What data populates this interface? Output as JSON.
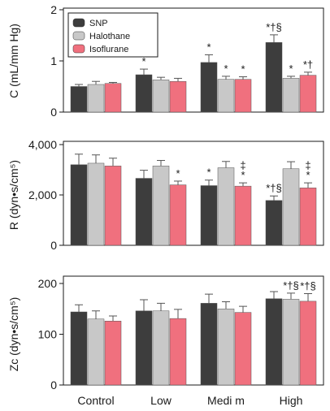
{
  "legend": {
    "position": "top-left",
    "entries": [
      {
        "name": "SNP",
        "color": "#3d3d3d"
      },
      {
        "name": "Halothane",
        "color": "#c8c8c8"
      },
      {
        "name": "Isoflurane",
        "color": "#f0707e"
      }
    ]
  },
  "chart_data": [
    {
      "type": "bar",
      "ylabel": "C (mL/mm Hg)",
      "ylim": [
        0,
        2
      ],
      "yticks": [
        "0",
        "1",
        "2"
      ],
      "yticks_values": [
        0,
        1,
        2
      ],
      "categories": [
        "Control",
        "Low",
        "Medium",
        "High"
      ],
      "series": [
        {
          "name": "SNP",
          "values": [
            0.5,
            0.73,
            0.97,
            1.36
          ],
          "errors": [
            0.04,
            0.11,
            0.15,
            0.15
          ]
        },
        {
          "name": "Halothane",
          "values": [
            0.54,
            0.63,
            0.64,
            0.66
          ],
          "errors": [
            0.06,
            0.05,
            0.06,
            0.04
          ]
        },
        {
          "name": "Isoflurane",
          "values": [
            0.56,
            0.6,
            0.64,
            0.72
          ],
          "errors": [
            0.02,
            0.06,
            0.05,
            0.06
          ]
        }
      ],
      "annotations": [
        {
          "category": 1,
          "series": 0,
          "text": "*"
        },
        {
          "category": 2,
          "series": 0,
          "text": "*"
        },
        {
          "category": 2,
          "series": 1,
          "text": "*"
        },
        {
          "category": 2,
          "series": 2,
          "text": "*"
        },
        {
          "category": 3,
          "series": 0,
          "text": "*†§"
        },
        {
          "category": 3,
          "series": 1,
          "text": "*"
        },
        {
          "category": 3,
          "series": 2,
          "text": "*†"
        }
      ]
    },
    {
      "type": "bar",
      "ylabel": "R (dyn•s/cm⁵)",
      "ylim": [
        0,
        4000
      ],
      "yticks": [
        "0",
        "2,000",
        "4,000"
      ],
      "yticks_values": [
        0,
        2000,
        4000
      ],
      "categories": [
        "Control",
        "Low",
        "Medium",
        "High"
      ],
      "series": [
        {
          "name": "SNP",
          "values": [
            3200,
            2660,
            2370,
            1780
          ],
          "errors": [
            420,
            320,
            220,
            180
          ]
        },
        {
          "name": "Halothane",
          "values": [
            3260,
            3150,
            3080,
            3040
          ],
          "errors": [
            330,
            220,
            250,
            280
          ]
        },
        {
          "name": "Isoflurane",
          "values": [
            3150,
            2400,
            2350,
            2280
          ],
          "errors": [
            310,
            150,
            130,
            200
          ]
        }
      ],
      "annotations": [
        {
          "category": 1,
          "series": 2,
          "text": "*"
        },
        {
          "category": 2,
          "series": 0,
          "text": "*"
        },
        {
          "category": 2,
          "series": 2,
          "text": "‡\n*"
        },
        {
          "category": 3,
          "series": 0,
          "text": "*†§"
        },
        {
          "category": 3,
          "series": 2,
          "text": "‡\n*"
        }
      ]
    },
    {
      "type": "bar",
      "ylabel": "Zc (dyn•s/cm⁵)",
      "ylim": [
        0,
        200
      ],
      "yticks": [
        "0",
        "100",
        "200"
      ],
      "yticks_values": [
        0,
        100,
        200
      ],
      "xticklabels_shown": [
        "Control",
        "Low",
        "Medi  m",
        "High"
      ],
      "categories": [
        "Control",
        "Low",
        "Medium",
        "High"
      ],
      "series": [
        {
          "name": "SNP",
          "values": [
            144,
            146,
            161,
            170
          ],
          "errors": [
            14,
            22,
            18,
            14
          ]
        },
        {
          "name": "Halothane",
          "values": [
            130,
            146,
            150,
            169
          ],
          "errors": [
            16,
            15,
            14,
            12
          ]
        },
        {
          "name": "Isoflurane",
          "values": [
            126,
            131,
            143,
            165
          ],
          "errors": [
            10,
            18,
            12,
            15
          ]
        }
      ],
      "annotations": [
        {
          "category": 3,
          "series": 1,
          "text": "*†§"
        },
        {
          "category": 3,
          "series": 2,
          "text": "*†§"
        }
      ]
    }
  ]
}
